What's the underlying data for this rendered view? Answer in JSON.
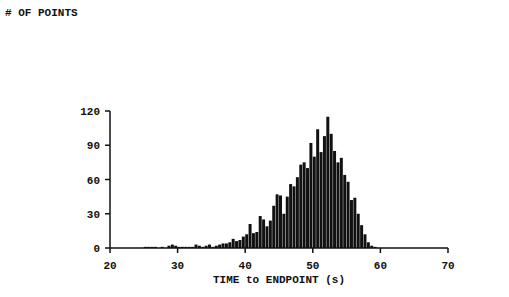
{
  "chart_data": {
    "type": "histogram",
    "y_label": "# OF POINTS",
    "x_label": "TIME to ENDPOINT (s)",
    "bins": [
      25,
      25.5,
      26,
      26.5,
      27,
      27.5,
      28,
      28.5,
      29,
      29.5,
      30,
      30.5,
      31,
      31.5,
      32,
      32.5,
      33,
      33.5,
      34,
      34.5,
      35,
      35.5,
      36,
      36.5,
      37,
      37.5,
      38,
      38.5,
      39,
      39.5,
      40,
      40.5,
      41,
      41.5,
      42,
      42.5,
      43,
      43.5,
      44,
      44.5,
      45,
      45.5,
      46,
      46.5,
      47,
      47.5,
      48,
      48.5,
      49,
      49.5,
      50,
      50.5,
      51,
      51.5,
      52,
      52.5,
      53,
      53.5,
      54,
      54.5,
      55,
      55.5,
      56,
      56.5,
      57,
      57.5,
      58,
      58.5,
      59,
      59.5,
      60,
      60.5,
      61
    ],
    "values": [
      1,
      1,
      1,
      1,
      0,
      1,
      0,
      2,
      3,
      2,
      1,
      1,
      1,
      1,
      1,
      3,
      2,
      1,
      2,
      3,
      1,
      2,
      3,
      4,
      4,
      5,
      8,
      6,
      7,
      10,
      12,
      21,
      13,
      14,
      28,
      25,
      19,
      24,
      37,
      47,
      46,
      30,
      45,
      56,
      54,
      62,
      73,
      75,
      70,
      92,
      80,
      104,
      84,
      98,
      115,
      100,
      85,
      75,
      79,
      64,
      58,
      42,
      44,
      30,
      20,
      12,
      5,
      2,
      1,
      0,
      0,
      0
    ],
    "color": "#111111",
    "xlim": [
      20,
      70
    ],
    "ylim": [
      0,
      120
    ],
    "xticks": [
      20,
      30,
      40,
      50,
      60,
      70
    ],
    "yticks": [
      0,
      30,
      60,
      90,
      120
    ],
    "grid": false
  }
}
